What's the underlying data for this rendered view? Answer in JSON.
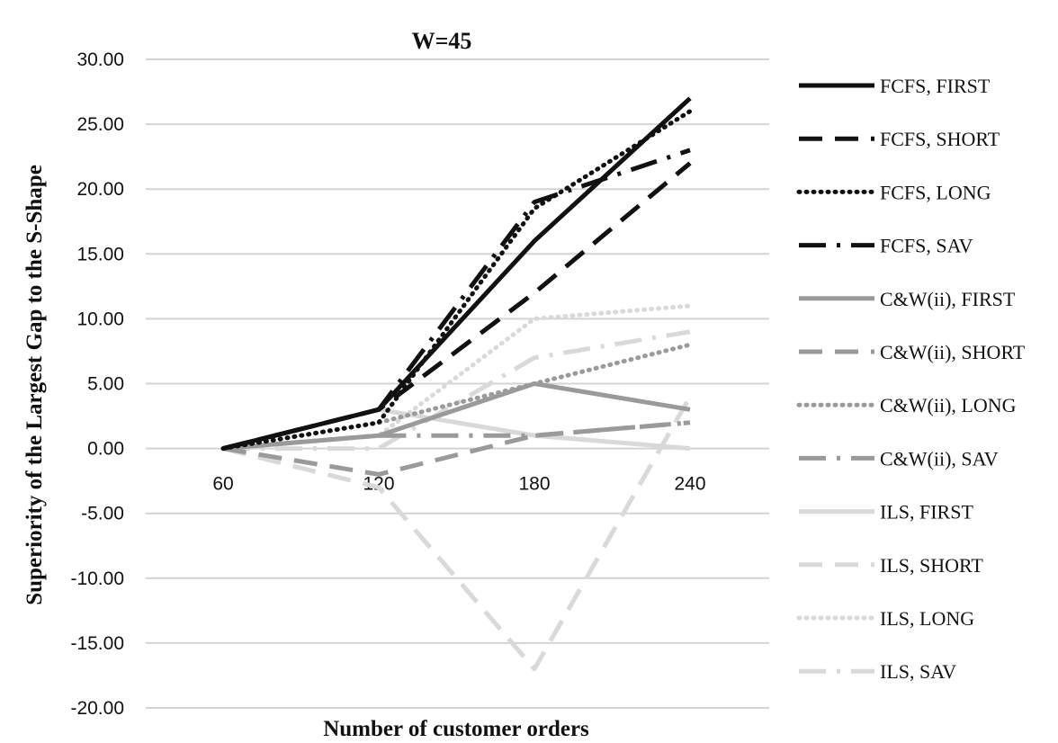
{
  "chart_data": {
    "type": "line",
    "title": "W=45",
    "xlabel": "Number of customer orders",
    "ylabel": "Superiority of the Largest Gap to the S-Shape",
    "categories": [
      "60",
      "120",
      "180",
      "240"
    ],
    "yticks": [
      "30.00",
      "25.00",
      "20.00",
      "15.00",
      "10.00",
      "5.00",
      "0.00",
      "-5.00",
      "-10.00",
      "-15.00",
      "-20.00"
    ],
    "ylim": [
      -20,
      30
    ],
    "grid": true,
    "legend_position": "right",
    "series": [
      {
        "name": "FCFS, FIRST",
        "values": [
          0,
          3,
          16,
          27
        ],
        "color": "#111111",
        "dash": "solid"
      },
      {
        "name": "FCFS, SHORT",
        "values": [
          0,
          3,
          12,
          22
        ],
        "color": "#111111",
        "dash": "dash"
      },
      {
        "name": "FCFS, LONG",
        "values": [
          0,
          2,
          18.5,
          26
        ],
        "color": "#111111",
        "dash": "dot"
      },
      {
        "name": "FCFS, SAV",
        "values": [
          0,
          3,
          19,
          23
        ],
        "color": "#111111",
        "dash": "dashdot"
      },
      {
        "name": "C&W(ii), FIRST",
        "values": [
          0,
          1,
          5,
          3
        ],
        "color": "#9a9a9a",
        "dash": "solid"
      },
      {
        "name": "C&W(ii), SHORT",
        "values": [
          0,
          -2,
          1,
          2
        ],
        "color": "#9a9a9a",
        "dash": "dash"
      },
      {
        "name": "C&W(ii), LONG",
        "values": [
          0,
          2,
          5,
          8
        ],
        "color": "#9a9a9a",
        "dash": "dot"
      },
      {
        "name": "C&W(ii), SAV",
        "values": [
          0,
          1,
          1,
          2
        ],
        "color": "#9a9a9a",
        "dash": "dashdot"
      },
      {
        "name": "ILS, FIRST",
        "values": [
          0,
          3,
          1,
          0
        ],
        "color": "#d9d9d9",
        "dash": "solid"
      },
      {
        "name": "ILS, SHORT",
        "values": [
          0,
          -3,
          -17,
          4
        ],
        "color": "#d9d9d9",
        "dash": "dash"
      },
      {
        "name": "ILS, LONG",
        "values": [
          0,
          1,
          10,
          11
        ],
        "color": "#d9d9d9",
        "dash": "dot"
      },
      {
        "name": "ILS, SAV",
        "values": [
          0,
          0,
          7,
          9
        ],
        "color": "#d9d9d9",
        "dash": "dashdot"
      }
    ]
  }
}
